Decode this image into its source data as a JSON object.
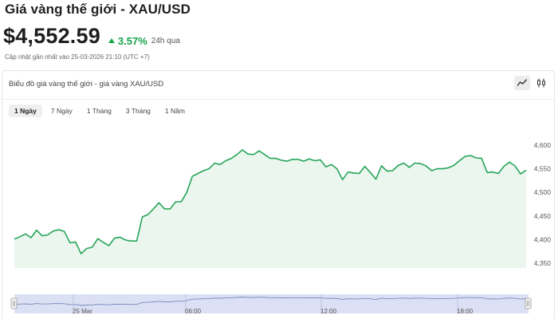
{
  "header": {
    "title": "Giá vàng thế giới - XAU/USD",
    "price": "$4,552.59",
    "change_pct": "3.57%",
    "change_period": "24h qua",
    "updated": "Cập nhật gần nhất vào 25-03-2026 21:10 (UTC +7)"
  },
  "chart_card": {
    "title": "Biểu đồ giá vàng thế giới - giá vàng XAU/USD",
    "chart_type_buttons": [
      {
        "icon": "line-chart-icon",
        "active": true
      },
      {
        "icon": "candlestick-icon",
        "active": false
      }
    ],
    "ranges": [
      {
        "label": "1 Ngày",
        "active": true
      },
      {
        "label": "7 Ngày",
        "active": false
      },
      {
        "label": "1 Tháng",
        "active": false
      },
      {
        "label": "3 Tháng",
        "active": false
      },
      {
        "label": "1 Năm",
        "active": false
      }
    ]
  },
  "colors": {
    "line": "#27a55a",
    "area": "#eaf6ee",
    "navigator": "#cfd6f2",
    "up": "#16a34a"
  },
  "chart_data": {
    "type": "area",
    "title": "",
    "xlabel": "",
    "ylabel": "",
    "ylim": [
      4350,
      4600
    ],
    "y_ticks": [
      "4,600",
      "4,550",
      "4,500",
      "4,450",
      "4,400",
      "4,350"
    ],
    "navigator_ticks": [
      "25 Mar",
      "06:00",
      "12:00",
      "18:00"
    ],
    "series": [
      {
        "values": [
          4401,
          4406,
          4412,
          4404,
          4420,
          4408,
          4410,
          4418,
          4421,
          4417,
          4393,
          4395,
          4370,
          4381,
          4384,
          4402,
          4394,
          4387,
          4403,
          4405,
          4399,
          4397,
          4397,
          4448,
          4453,
          4465,
          4478,
          4465,
          4465,
          4480,
          4480,
          4500,
          4534,
          4540,
          4546,
          4550,
          4562,
          4559,
          4567,
          4572,
          4580,
          4590,
          4581,
          4580,
          4588,
          4580,
          4572,
          4572,
          4568,
          4566,
          4570,
          4570,
          4566,
          4571,
          4567,
          4569,
          4554,
          4559,
          4550,
          4527,
          4543,
          4541,
          4540,
          4555,
          4542,
          4528,
          4556,
          4545,
          4546,
          4557,
          4562,
          4553,
          4562,
          4561,
          4556,
          4546,
          4550,
          4550,
          4552,
          4557,
          4567,
          4576,
          4578,
          4573,
          4572,
          4542,
          4543,
          4540,
          4555,
          4564,
          4556,
          4539,
          4547
        ]
      }
    ]
  }
}
